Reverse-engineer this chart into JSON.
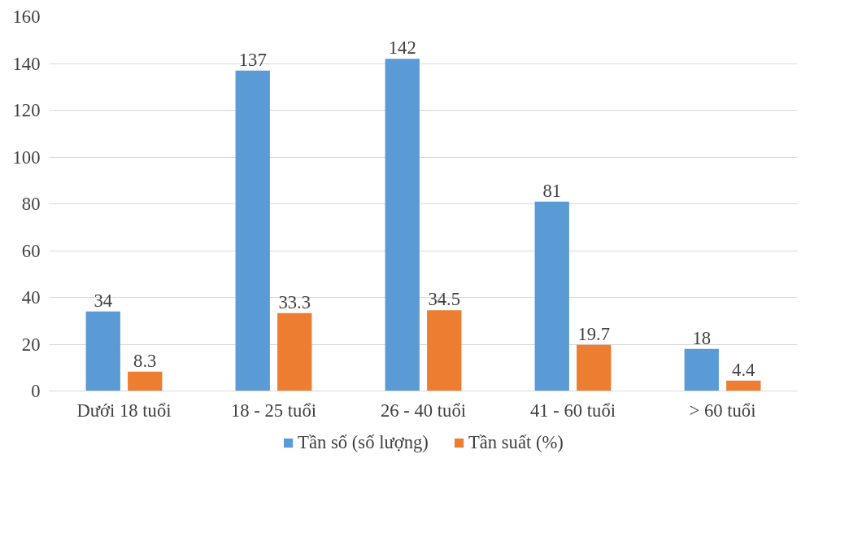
{
  "chart_data": {
    "type": "bar",
    "categories": [
      "Dưới 18 tuổi",
      "18 - 25 tuổi",
      "26 - 40 tuổi",
      "41 - 60 tuổi",
      "> 60 tuổi"
    ],
    "series": [
      {
        "name": "Tần số (số lượng)",
        "color": "#5b9bd5",
        "values": [
          34,
          137,
          142,
          81,
          18
        ]
      },
      {
        "name": "Tần suất (%)",
        "color": "#ed7d31",
        "values": [
          8.3,
          33.3,
          34.5,
          19.7,
          4.4
        ]
      }
    ],
    "ylim": [
      0,
      160
    ],
    "yticks": [
      0,
      20,
      40,
      60,
      80,
      100,
      120,
      140,
      160
    ],
    "grid": "y",
    "legend": "bottom",
    "data_labels": true
  }
}
